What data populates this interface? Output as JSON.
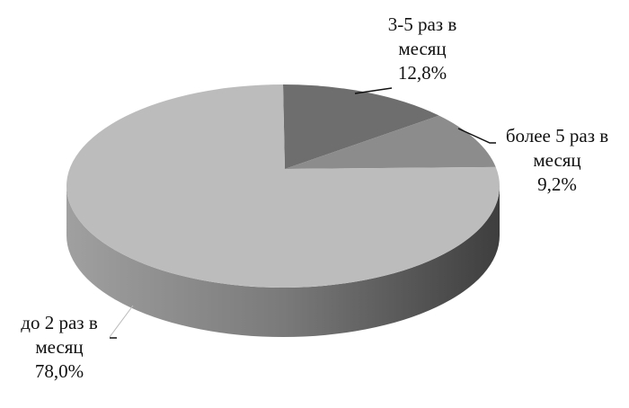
{
  "chart_data": {
    "type": "pie",
    "style": "3d",
    "start": "12 o'clock, clockwise",
    "slices": [
      {
        "label": "3-5 раз в месяц",
        "line1": "3-5 раз в",
        "line2": "месяц",
        "value": 12.8,
        "value_label": "12,8%",
        "color": "#6e6e6e"
      },
      {
        "label": "более 5 раз в месяц",
        "line1": "более 5 раз в",
        "line2": "месяц",
        "value": 9.2,
        "value_label": "9,2%",
        "color": "#8c8c8c"
      },
      {
        "label": "до 2 раз в месяц",
        "line1": "до 2 раз в",
        "line2": "месяц",
        "value": 78.0,
        "value_label": "78,0%",
        "color": "#bcbcbc"
      }
    ],
    "legend": "none",
    "data_labels": "outside with leader lines"
  }
}
